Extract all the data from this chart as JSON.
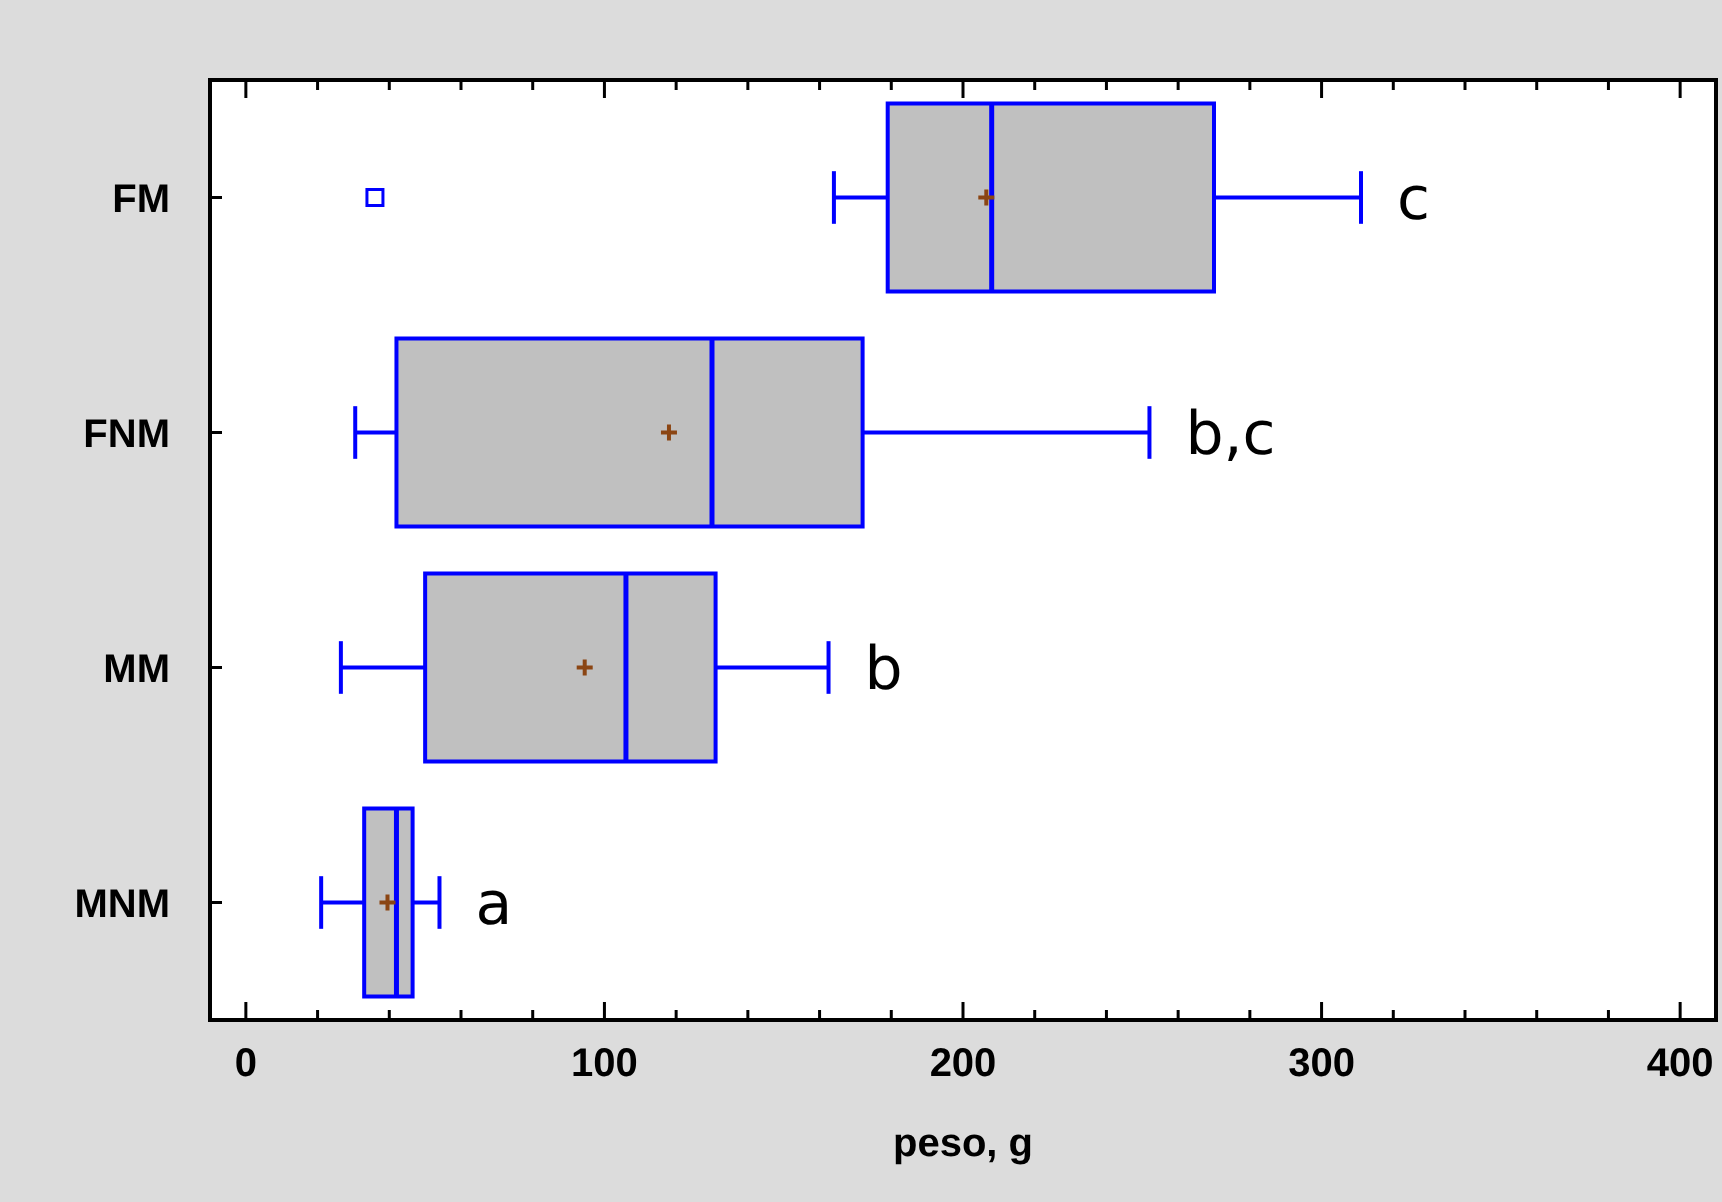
{
  "chart_data": {
    "type": "box",
    "orientation": "horizontal",
    "xlabel": "peso, g",
    "categories": [
      "FM",
      "FNM",
      "MM",
      "MNM"
    ],
    "boxes": [
      {
        "low": 164,
        "q1": 179,
        "median": 208,
        "q3": 270,
        "high": 311,
        "mean": 206.5,
        "outliers": [
          36
        ]
      },
      {
        "low": 30.5,
        "q1": 42,
        "median": 130,
        "q3": 172,
        "high": 252,
        "mean": 118
      },
      {
        "low": 26.5,
        "q1": 50,
        "median": 106,
        "q3": 131,
        "high": 162.5,
        "mean": 94.5
      },
      {
        "low": 21,
        "q1": 33,
        "median": 42,
        "q3": 46.5,
        "high": 54,
        "mean": 39.5
      }
    ],
    "color": "#c0c0c0",
    "xlim": [
      -10,
      410
    ],
    "xticks": [
      0,
      {
        "value": 20,
        "label": null
      },
      {
        "value": 40,
        "label": null
      },
      {
        "value": 60,
        "label": null
      },
      {
        "value": 80,
        "label": null
      },
      100,
      {
        "value": 120,
        "label": null
      },
      {
        "value": 140,
        "label": null
      },
      {
        "value": 160,
        "label": null
      },
      {
        "value": 180,
        "label": null
      },
      200,
      {
        "value": 220,
        "label": null
      },
      {
        "value": 240,
        "label": null
      },
      {
        "value": 260,
        "label": null
      },
      {
        "value": 280,
        "label": null
      },
      300,
      {
        "value": 320,
        "label": null
      },
      {
        "value": 340,
        "label": null
      },
      {
        "value": 360,
        "label": null
      },
      {
        "value": 380,
        "label": null
      },
      400
    ],
    "annotations": [
      {
        "text": "c",
        "x": 311,
        "y": "FM"
      },
      {
        "text": "b,c",
        "x": 252,
        "y": "FNM"
      },
      {
        "text": "b",
        "x": 162.5,
        "y": "MM"
      },
      {
        "text": "a",
        "x": 54,
        "y": "MNM"
      }
    ]
  }
}
